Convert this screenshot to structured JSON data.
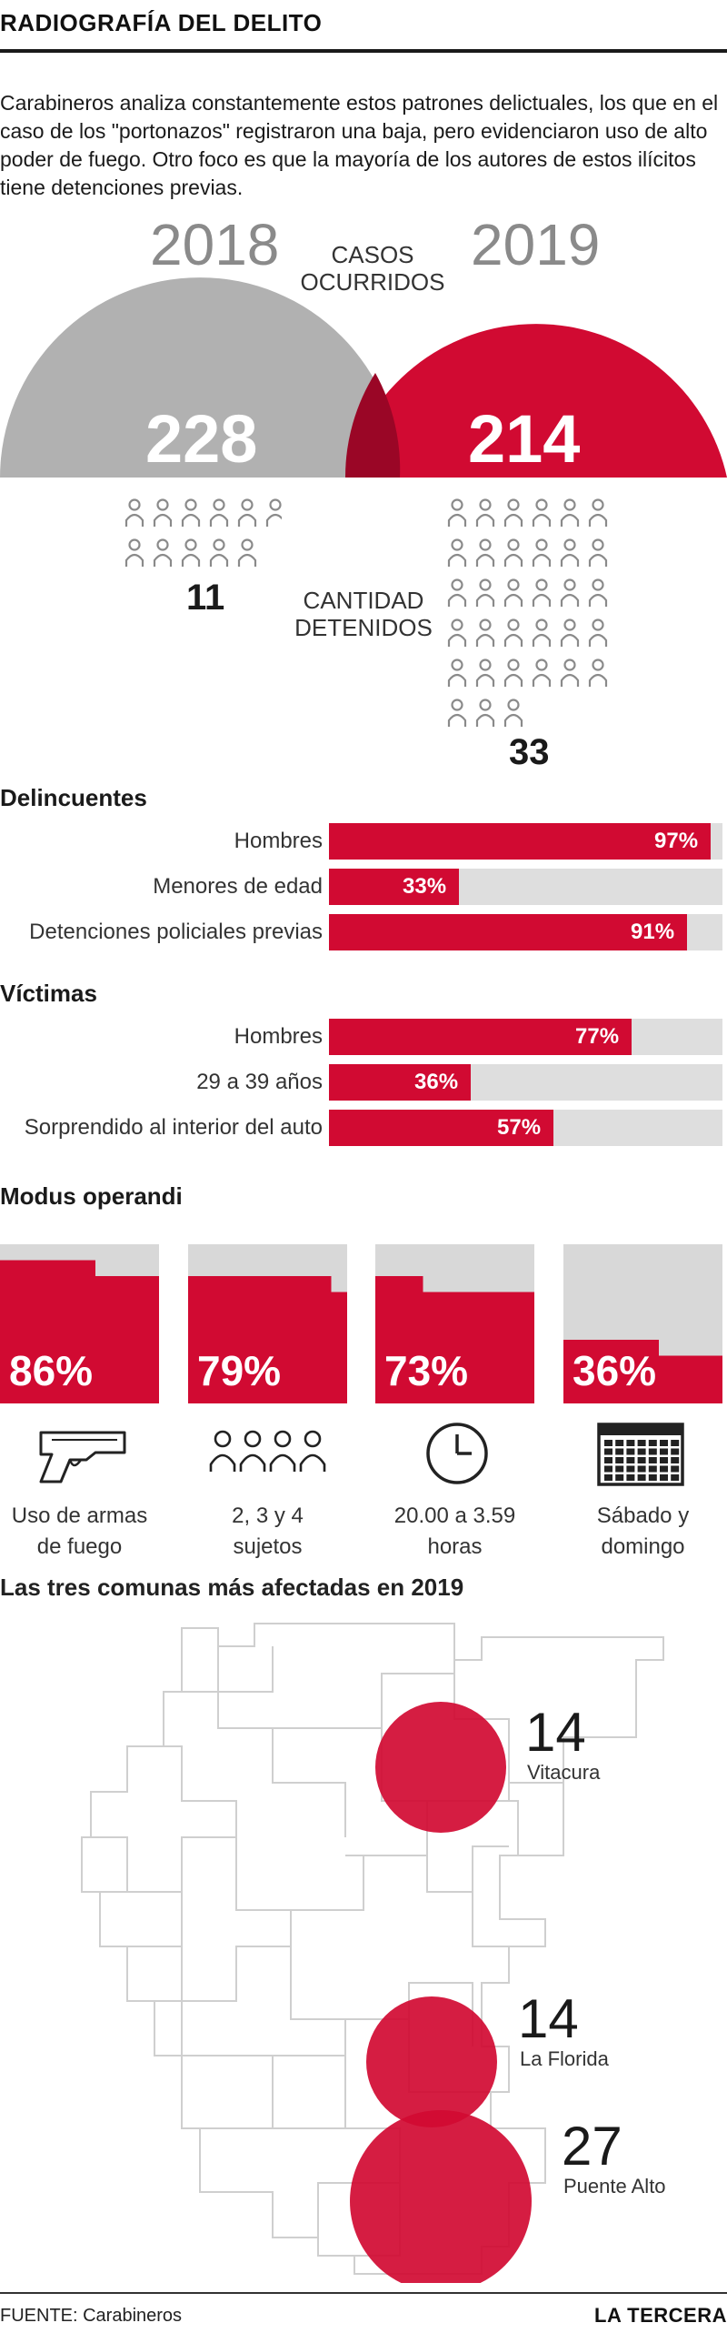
{
  "header": {
    "title": "RADIOGRAFÍA DEL DELITO",
    "intro": "Carabineros analiza constantemente estos patrones delictuales, los que en el caso de los \"portonazos\" registraron una baja, pero evidenciaron uso de alto poder de fuego. Otro foco es que la mayoría de los autores de estos ilícitos tiene detenciones previas."
  },
  "cases": {
    "year_a": "2018",
    "year_b": "2019",
    "label_line1": "CASOS",
    "label_line2": "OCURRIDOS",
    "value_a": "228",
    "value_b": "214",
    "detained_label_line1": "CANTIDAD",
    "detained_label_line2": "DETENIDOS",
    "detained_a": "11",
    "detained_b": "33",
    "color_a": "#b1b1b1",
    "color_b": "#d10a32",
    "overlap_color": "#9a0626"
  },
  "chart_data": [
    {
      "type": "bar",
      "title": "Delincuentes",
      "categories": [
        "Hombres",
        "Menores de edad",
        "Detenciones policiales previas"
      ],
      "values": [
        97,
        33,
        91
      ],
      "value_labels": [
        "97%",
        "33%",
        "91%"
      ],
      "ylim": [
        0,
        100
      ]
    },
    {
      "type": "bar",
      "title": "Víctimas",
      "categories": [
        "Hombres",
        "29 a 39 años",
        "Sorprendido al interior del auto"
      ],
      "values": [
        77,
        36,
        57
      ],
      "value_labels": [
        "77%",
        "36%",
        "57%"
      ],
      "ylim": [
        0,
        100
      ]
    },
    {
      "type": "bar",
      "title": "Modus operandi",
      "categories": [
        "Uso de armas de fuego",
        "2, 3 y 4 sujetos",
        "20.00 a 3.59 horas",
        "Sábado y domingo"
      ],
      "values": [
        86,
        79,
        73,
        36
      ],
      "value_labels": [
        "86%",
        "79%",
        "73%",
        "36%"
      ],
      "ylim": [
        0,
        100
      ]
    },
    {
      "type": "scatter",
      "title": "Las tres comunas más afectadas en 2019",
      "series": [
        {
          "name": "Vitacura",
          "values": [
            14
          ],
          "label": "14"
        },
        {
          "name": "La Florida",
          "values": [
            14
          ],
          "label": "14"
        },
        {
          "name": "Puente Alto",
          "values": [
            27
          ],
          "label": "27"
        }
      ]
    }
  ],
  "sections": {
    "offenders": "Delincuentes",
    "victims": "Víctimas",
    "modus": "Modus operandi",
    "modus_captions": [
      {
        "l1": "Uso de armas",
        "l2": "de fuego",
        "icon": "gun-icon"
      },
      {
        "l1": "2, 3 y 4",
        "l2": "sujetos",
        "icon": "people-icon"
      },
      {
        "l1": "20.00 a 3.59",
        "l2": "horas",
        "icon": "clock-icon"
      },
      {
        "l1": "Sábado y",
        "l2": "domingo",
        "icon": "calendar-icon"
      }
    ],
    "map": "Las tres comunas más afectadas en 2019",
    "communes": [
      {
        "num": "14",
        "name": "Vitacura"
      },
      {
        "num": "14",
        "name": "La Florida"
      },
      {
        "num": "27",
        "name": "Puente Alto"
      }
    ]
  },
  "footer": {
    "source": "FUENTE: Carabineros",
    "brand": "LA TERCERA"
  },
  "colors": {
    "accent": "#d10a32",
    "track": "#dedede",
    "gray": "#b1b1b1"
  }
}
